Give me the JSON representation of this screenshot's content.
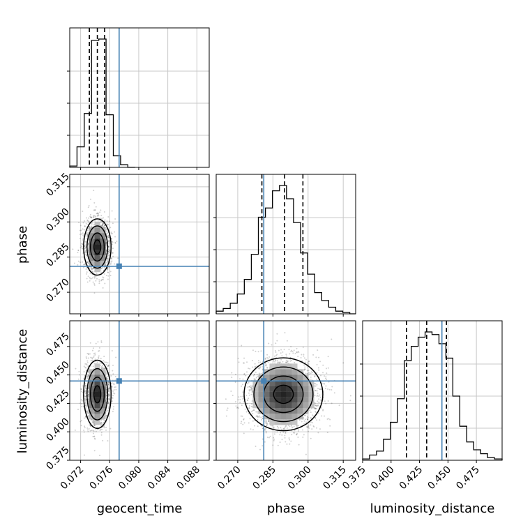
{
  "chart_data": {
    "type": "corner",
    "parameters": [
      "geocent_time",
      "phase",
      "luminosity_distance"
    ],
    "axis_labels": {
      "x": [
        "geocent_time",
        "phase",
        "luminosity_distance"
      ],
      "y": [
        "phase",
        "luminosity_distance"
      ]
    },
    "grid": true,
    "truths": {
      "geocent_time": 0.0773,
      "phase": 0.2811,
      "luminosity_distance": 0.4447
    },
    "truth_color": "#4682b4",
    "ranges": {
      "geocent_time": [
        0.0705,
        0.0897
      ],
      "phase": [
        0.2608,
        0.3203
      ],
      "luminosity_distance": [
        0.375,
        0.4976
      ]
    },
    "ticks": {
      "geocent_time": [
        "0.072",
        "0.076",
        "0.080",
        "0.084",
        "0.088"
      ],
      "phase": [
        "0.270",
        "0.285",
        "0.300",
        "0.315"
      ],
      "luminosity_distance": [
        "0.375",
        "0.400",
        "0.425",
        "0.450",
        "0.475"
      ]
    },
    "marginals": [
      {
        "param": "geocent_time",
        "quantiles": [
          0.0732,
          0.0743,
          0.0753
        ],
        "bin_edges": [
          0.0705,
          0.0715,
          0.0725,
          0.0735,
          0.0745,
          0.0755,
          0.0765,
          0.0775,
          0.0785,
          0.0795
        ],
        "counts": [
          0.01,
          0.16,
          0.42,
          0.99,
          1.0,
          0.41,
          0.09,
          0.02,
          0.0
        ]
      },
      {
        "param": "phase",
        "quantiles": [
          0.2803,
          0.29,
          0.2978
        ],
        "bin_edges": [
          0.2608,
          0.2638,
          0.2668,
          0.2698,
          0.2728,
          0.2758,
          0.2788,
          0.2818,
          0.2848,
          0.2878,
          0.2908,
          0.2938,
          0.2968,
          0.2998,
          0.3028,
          0.3058,
          0.3088,
          0.3118,
          0.3148,
          0.3178,
          0.3203
        ],
        "counts": [
          0.02,
          0.04,
          0.08,
          0.15,
          0.26,
          0.45,
          0.73,
          0.8,
          0.93,
          0.97,
          0.87,
          0.69,
          0.46,
          0.3,
          0.16,
          0.1,
          0.05,
          0.02,
          0.01,
          0.0
        ]
      },
      {
        "param": "luminosity_distance",
        "quantiles": [
          0.4135,
          0.4313,
          0.4487
        ],
        "bin_edges": [
          0.375,
          0.3811,
          0.3872,
          0.3933,
          0.3994,
          0.4055,
          0.4116,
          0.4177,
          0.4238,
          0.4299,
          0.436,
          0.4421,
          0.4482,
          0.4543,
          0.4604,
          0.4665,
          0.4726,
          0.4787,
          0.4848,
          0.4909,
          0.4976
        ],
        "counts": [
          0.01,
          0.04,
          0.07,
          0.16,
          0.29,
          0.47,
          0.76,
          0.87,
          0.94,
          0.98,
          0.96,
          0.89,
          0.78,
          0.49,
          0.26,
          0.14,
          0.08,
          0.05,
          0.02,
          0.01
        ]
      }
    ],
    "joint": [
      {
        "x": "geocent_time",
        "y": "phase",
        "center": [
          0.0743,
          0.2893
        ],
        "sigma": [
          0.0009,
          0.006
        ],
        "samples": 1500
      },
      {
        "x": "geocent_time",
        "y": "luminosity_distance",
        "center": [
          0.0743,
          0.433
        ],
        "sigma": [
          0.0009,
          0.015
        ],
        "samples": 1500
      },
      {
        "x": "phase",
        "y": "luminosity_distance",
        "center": [
          0.2895,
          0.433
        ],
        "sigma": [
          0.008,
          0.016
        ],
        "samples": 2200
      }
    ]
  }
}
